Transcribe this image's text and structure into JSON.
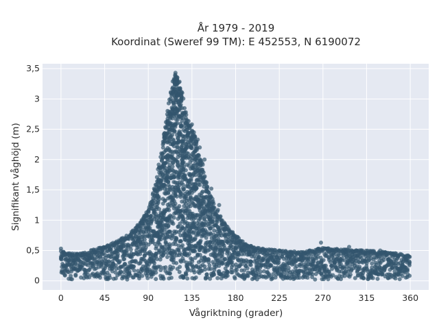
{
  "chart_data": {
    "type": "scatter",
    "title_line1": "År 1979 - 2019",
    "title_line2": "Koordinat (Sweref 99 TM): E 452553, N 6190072",
    "xlabel": "Vågriktning (grader)",
    "ylabel": "Signifikant våghöjd (m)",
    "xlim": [
      -19,
      379
    ],
    "ylim": [
      -0.15,
      3.58
    ],
    "x_ticks": [
      0,
      45,
      90,
      135,
      180,
      225,
      270,
      315,
      360
    ],
    "x_tick_labels": [
      "0",
      "45",
      "90",
      "135",
      "180",
      "225",
      "270",
      "315",
      "360"
    ],
    "y_ticks": [
      0,
      0.5,
      1,
      1.5,
      2,
      2.5,
      3,
      3.5
    ],
    "y_tick_labels": [
      "0",
      "0,5",
      "1",
      "1,5",
      "2",
      "2,5",
      "3",
      "3,5"
    ],
    "grid": true,
    "plot_background": "#e5e9f2",
    "marker_color": "#33566e",
    "envelope": [
      [
        0,
        0.5
      ],
      [
        10,
        0.45
      ],
      [
        20,
        0.45
      ],
      [
        30,
        0.5
      ],
      [
        40,
        0.55
      ],
      [
        50,
        0.6
      ],
      [
        60,
        0.68
      ],
      [
        70,
        0.78
      ],
      [
        80,
        0.95
      ],
      [
        90,
        1.2
      ],
      [
        95,
        1.45
      ],
      [
        100,
        1.8
      ],
      [
        105,
        2.3
      ],
      [
        110,
        2.9
      ],
      [
        115,
        3.25
      ],
      [
        118,
        3.42
      ],
      [
        122,
        3.3
      ],
      [
        125,
        3.1
      ],
      [
        130,
        2.7
      ],
      [
        135,
        2.55
      ],
      [
        140,
        2.25
      ],
      [
        145,
        2.0
      ],
      [
        150,
        1.6
      ],
      [
        160,
        1.2
      ],
      [
        170,
        0.95
      ],
      [
        180,
        0.75
      ],
      [
        190,
        0.62
      ],
      [
        200,
        0.55
      ],
      [
        225,
        0.5
      ],
      [
        250,
        0.48
      ],
      [
        270,
        0.55
      ],
      [
        290,
        0.52
      ],
      [
        315,
        0.5
      ],
      [
        335,
        0.48
      ],
      [
        360,
        0.42
      ]
    ],
    "outliers": [
      [
        0,
        0.53
      ],
      [
        100,
        1.84
      ],
      [
        107,
        2.3
      ],
      [
        118,
        3.43
      ],
      [
        120,
        3.35
      ],
      [
        125,
        3.1
      ],
      [
        135,
        2.58
      ],
      [
        137,
        2.45
      ],
      [
        139,
        2.3
      ],
      [
        141,
        2.33
      ],
      [
        143,
        2.2
      ],
      [
        148,
        2.0
      ],
      [
        155,
        1.52
      ],
      [
        163,
        1.25
      ],
      [
        268,
        0.63
      ],
      [
        297,
        0.56
      ],
      [
        329,
        0.5
      ]
    ]
  }
}
